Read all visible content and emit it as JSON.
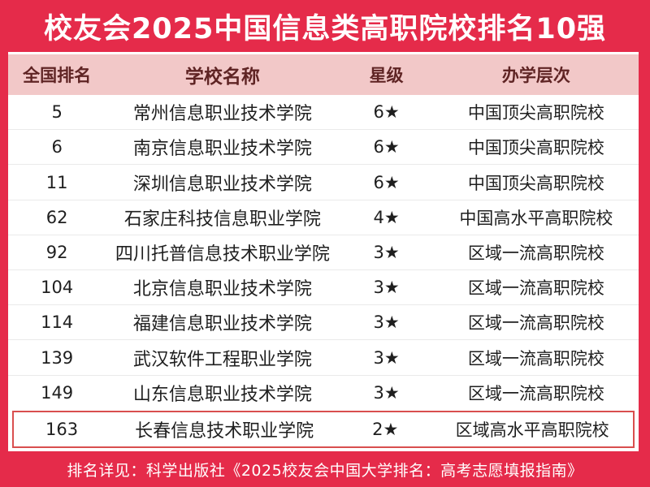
{
  "title": "校友会2025中国信息类高职院校排名10强",
  "table": {
    "headers": {
      "rank": "全国排名",
      "school": "学校名称",
      "stars": "星级",
      "level": "办学层次"
    },
    "rows": [
      {
        "rank": "5",
        "school": "常州信息职业技术学院",
        "stars": "6★",
        "level": "中国顶尖高职院校"
      },
      {
        "rank": "6",
        "school": "南京信息职业技术学院",
        "stars": "6★",
        "level": "中国顶尖高职院校"
      },
      {
        "rank": "11",
        "school": "深圳信息职业技术学院",
        "stars": "6★",
        "level": "中国顶尖高职院校"
      },
      {
        "rank": "62",
        "school": "石家庄科技信息职业学院",
        "stars": "4★",
        "level": "中国高水平高职院校"
      },
      {
        "rank": "92",
        "school": "四川托普信息技术职业学院",
        "stars": "3★",
        "level": "区域一流高职院校"
      },
      {
        "rank": "104",
        "school": "北京信息职业技术学院",
        "stars": "3★",
        "level": "区域一流高职院校"
      },
      {
        "rank": "114",
        "school": "福建信息职业技术学院",
        "stars": "3★",
        "level": "区域一流高职院校"
      },
      {
        "rank": "139",
        "school": "武汉软件工程职业学院",
        "stars": "3★",
        "level": "区域一流高职院校"
      },
      {
        "rank": "149",
        "school": "山东信息职业技术学院",
        "stars": "3★",
        "level": "区域一流高职院校"
      },
      {
        "rank": "163",
        "school": "长春信息技术职业学院",
        "stars": "2★",
        "level": "区域高水平高职院校"
      }
    ]
  },
  "footer_note": "排名详见：科学出版社《2025校友会中国大学排名：高考志愿填报指南》",
  "colors": {
    "accent_red": "#e52b4a",
    "header_bg": "#f2c8c8",
    "header_text": "#5f2424",
    "body_text": "#1f1f1f",
    "row_separator": "#eaeaea",
    "highlight_border": "#d94f4f",
    "title_text": "#ffffff"
  }
}
